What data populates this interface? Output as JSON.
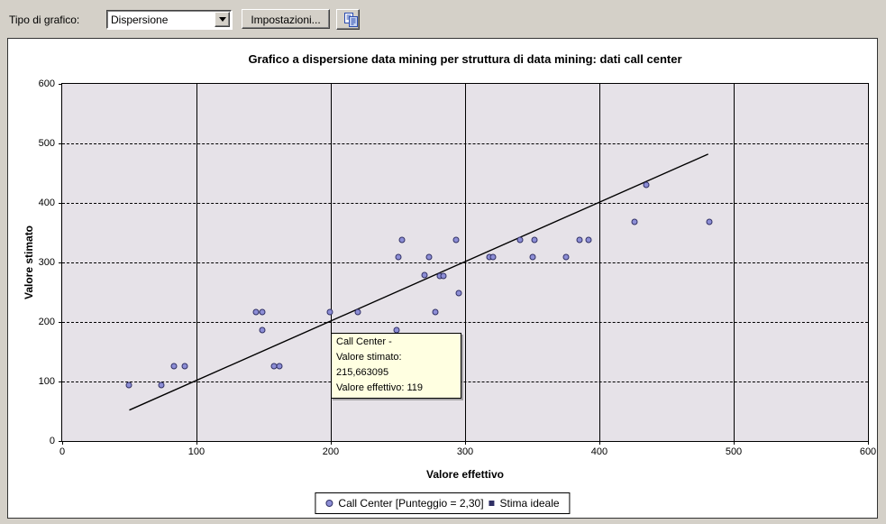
{
  "toolbar": {
    "chart_type_label": "Tipo di grafico:",
    "chart_type_value": "Dispersione",
    "settings_button": "Impostazioni..."
  },
  "tooltip": {
    "line1": "Call Center -",
    "line2": "Valore stimato: 215,663095",
    "line3": "Valore effettivo: 119"
  },
  "legend": {
    "series_label": "Call Center [Punteggio = 2,30]",
    "line_label": "Stima ideale"
  },
  "colors": {
    "window_bg": "#d4d0c8",
    "plot_bg": "#e6e2e8",
    "point_fill": "#8d8ed6",
    "point_border": "#303065",
    "ideal_line": "#000000",
    "tooltip_bg": "#ffffe1",
    "copy_icon_blue": "#2a4cb0"
  },
  "chart_data": {
    "type": "scatter",
    "title": "Grafico a dispersione data mining per struttura di data mining: dati call center",
    "xlabel": "Valore effettivo",
    "ylabel": "Valore stimato",
    "xlim": [
      0,
      600
    ],
    "ylim": [
      0,
      600
    ],
    "xticks": [
      0,
      100,
      200,
      300,
      400,
      500,
      600
    ],
    "yticks": [
      0,
      100,
      200,
      300,
      400,
      500,
      600
    ],
    "grid": {
      "vertical": "solid",
      "horizontal": "dashed"
    },
    "legend_position": "bottom",
    "series": [
      {
        "name": "Call Center [Punteggio = 2,30]",
        "type": "scatter",
        "marker": "circle",
        "points": [
          [
            50,
            94
          ],
          [
            74,
            94
          ],
          [
            83,
            125
          ],
          [
            91,
            125
          ],
          [
            144,
            216
          ],
          [
            149,
            216
          ],
          [
            149,
            186
          ],
          [
            158,
            125
          ],
          [
            162,
            125
          ],
          [
            199,
            216
          ],
          [
            220,
            216
          ],
          [
            249,
            187
          ],
          [
            250,
            309
          ],
          [
            253,
            338
          ],
          [
            270,
            279
          ],
          [
            273,
            309
          ],
          [
            278,
            216
          ],
          [
            281,
            278
          ],
          [
            284,
            278
          ],
          [
            293,
            338
          ],
          [
            295,
            248
          ],
          [
            318,
            309
          ],
          [
            321,
            309
          ],
          [
            341,
            338
          ],
          [
            350,
            309
          ],
          [
            352,
            338
          ],
          [
            375,
            309
          ],
          [
            385,
            338
          ],
          [
            392,
            338
          ],
          [
            426,
            368
          ],
          [
            435,
            430
          ],
          [
            482,
            368
          ]
        ]
      },
      {
        "name": "Stima ideale",
        "type": "line",
        "points": [
          [
            50,
            52
          ],
          [
            481,
            482
          ]
        ]
      }
    ]
  }
}
